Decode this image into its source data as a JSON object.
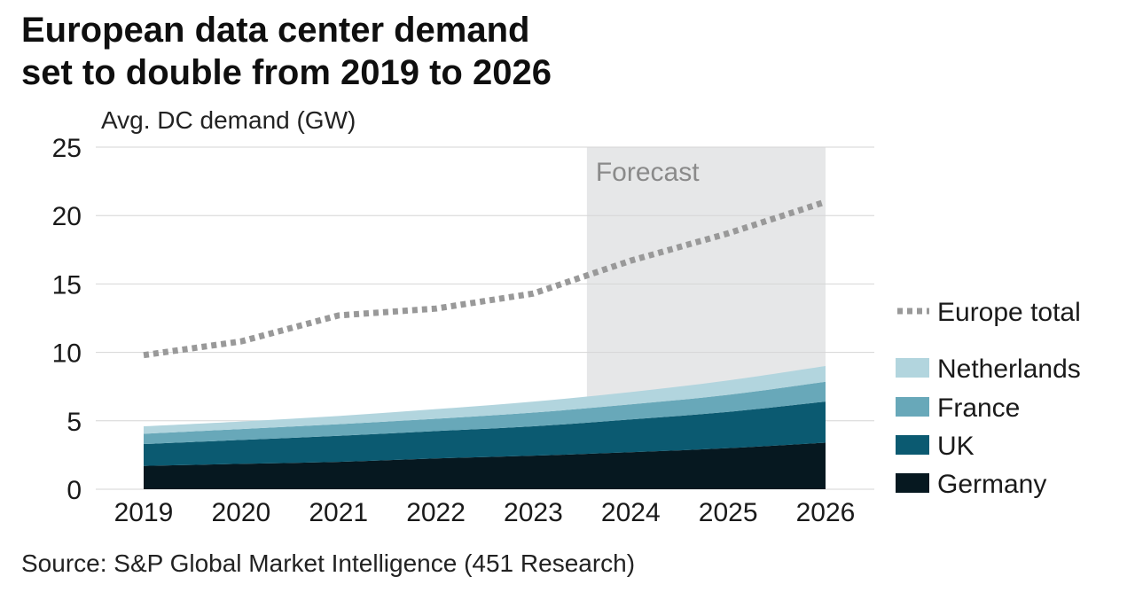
{
  "title_line1": "European data center demand",
  "title_line2": "set to double from 2019 to 2026",
  "source": "Source: S&P Global Market Intelligence (451 Research)",
  "chart_data": {
    "type": "area",
    "title": "European data center demand set to double from 2019 to 2026",
    "ylabel": "Avg. DC demand (GW)",
    "xlabel": "",
    "ylim": [
      0,
      25
    ],
    "yticks": [
      "0",
      "5",
      "10",
      "15",
      "20",
      "25"
    ],
    "categories": [
      "2019",
      "2020",
      "2021",
      "2022",
      "2023",
      "2024",
      "2025",
      "2026"
    ],
    "grid": true,
    "stacked": true,
    "forecast": {
      "label": "Forecast",
      "start": 2023.55,
      "end": 2026,
      "color": "#e6e7e8"
    },
    "series": [
      {
        "name": "Germany",
        "color": "#061820",
        "values": [
          1.7,
          1.85,
          2.0,
          2.25,
          2.45,
          2.7,
          3.0,
          3.4
        ]
      },
      {
        "name": "UK",
        "color": "#0b5a71",
        "values": [
          1.6,
          1.75,
          1.9,
          2.0,
          2.15,
          2.4,
          2.65,
          3.0
        ]
      },
      {
        "name": "France",
        "color": "#68a8b9",
        "values": [
          0.75,
          0.8,
          0.85,
          0.9,
          1.0,
          1.1,
          1.25,
          1.45
        ]
      },
      {
        "name": "Netherlands",
        "color": "#b2d5de",
        "values": [
          0.55,
          0.55,
          0.6,
          0.7,
          0.8,
          0.9,
          1.05,
          1.15
        ]
      }
    ],
    "line_series": {
      "name": "Europe total",
      "color": "#999999",
      "style": "dotted",
      "values": [
        9.8,
        10.8,
        12.7,
        13.2,
        14.3,
        16.7,
        18.7,
        21.0
      ]
    },
    "legend": [
      "Europe total",
      "Netherlands",
      "France",
      "UK",
      "Germany"
    ],
    "legend_position": "right"
  }
}
